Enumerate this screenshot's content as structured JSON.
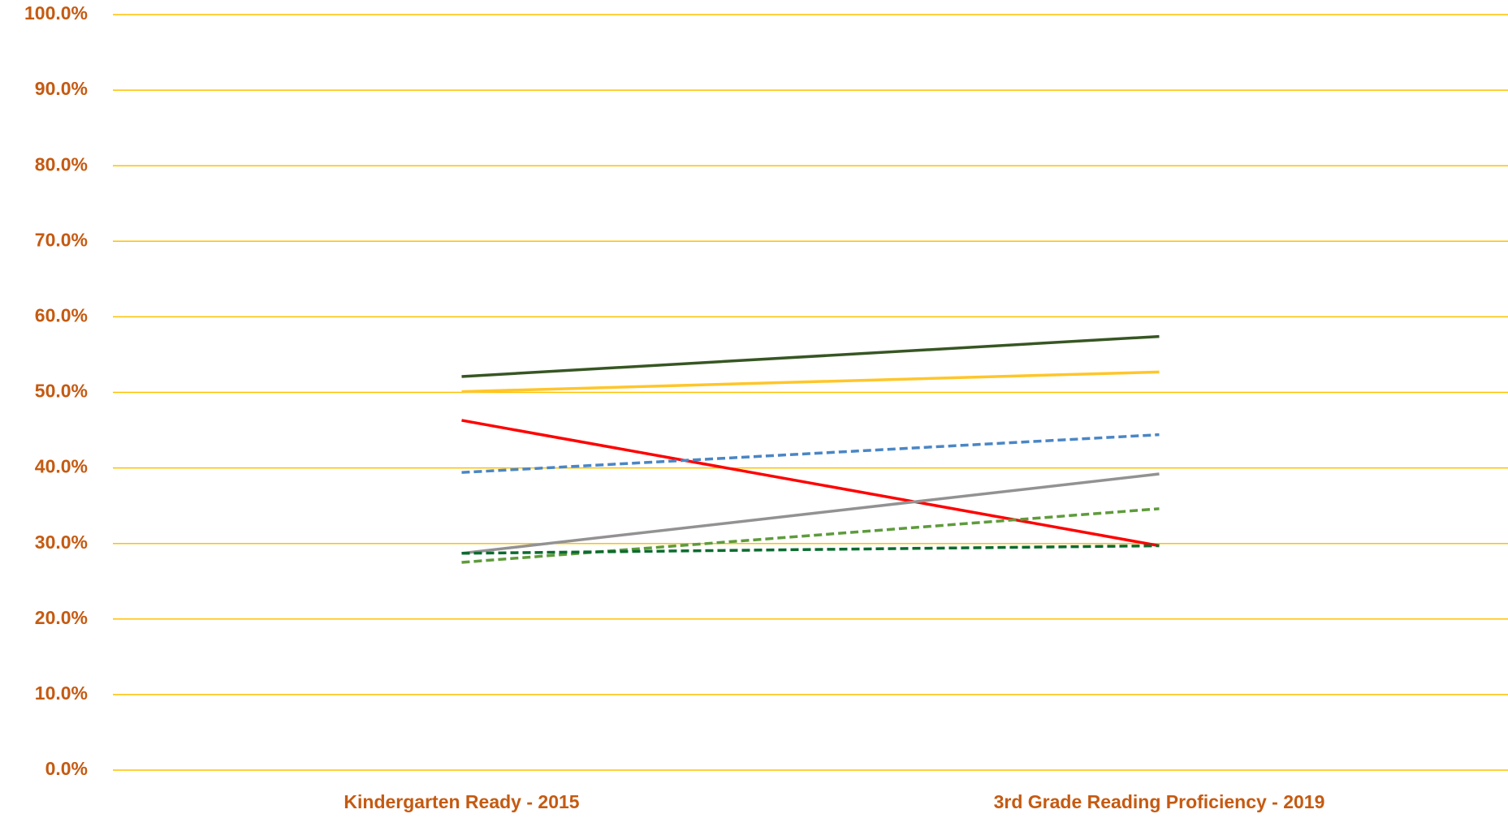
{
  "chart_data": {
    "type": "line",
    "categories": [
      "Kindergarten Ready - 2015",
      "3rd Grade Reading Proficiency - 2019"
    ],
    "series": [
      {
        "color": "#375623",
        "dashed": false,
        "values": [
          52.1,
          57.4
        ]
      },
      {
        "color": "#ffc629",
        "dashed": false,
        "values": [
          50.1,
          52.7
        ]
      },
      {
        "color": "#ff0000",
        "dashed": false,
        "values": [
          46.3,
          29.7
        ]
      },
      {
        "color": "#4a86c5",
        "dashed": true,
        "values": [
          39.4,
          44.4
        ]
      },
      {
        "color": "#929292",
        "dashed": false,
        "values": [
          28.7,
          39.2
        ]
      },
      {
        "color": "#5e9b3c",
        "dashed": true,
        "values": [
          27.5,
          34.6
        ]
      },
      {
        "color": "#0c6b2e",
        "dashed": true,
        "values": [
          28.7,
          29.7
        ]
      }
    ],
    "ylim": [
      0,
      100
    ],
    "yticks": [
      {
        "value": 0,
        "label": "0.0%"
      },
      {
        "value": 10,
        "label": "10.0%"
      },
      {
        "value": 20,
        "label": "20.0%"
      },
      {
        "value": 30,
        "label": "30.0%"
      },
      {
        "value": 40,
        "label": "40.0%"
      },
      {
        "value": 50,
        "label": "50.0%"
      },
      {
        "value": 60,
        "label": "60.0%"
      },
      {
        "value": 70,
        "label": "70.0%"
      },
      {
        "value": 80,
        "label": "80.0%"
      },
      {
        "value": 90,
        "label": "90.0%"
      },
      {
        "value": 100,
        "label": "100.0%"
      }
    ],
    "grid": true,
    "grid_color": "#ffc000",
    "label_color": "#c55a11"
  }
}
